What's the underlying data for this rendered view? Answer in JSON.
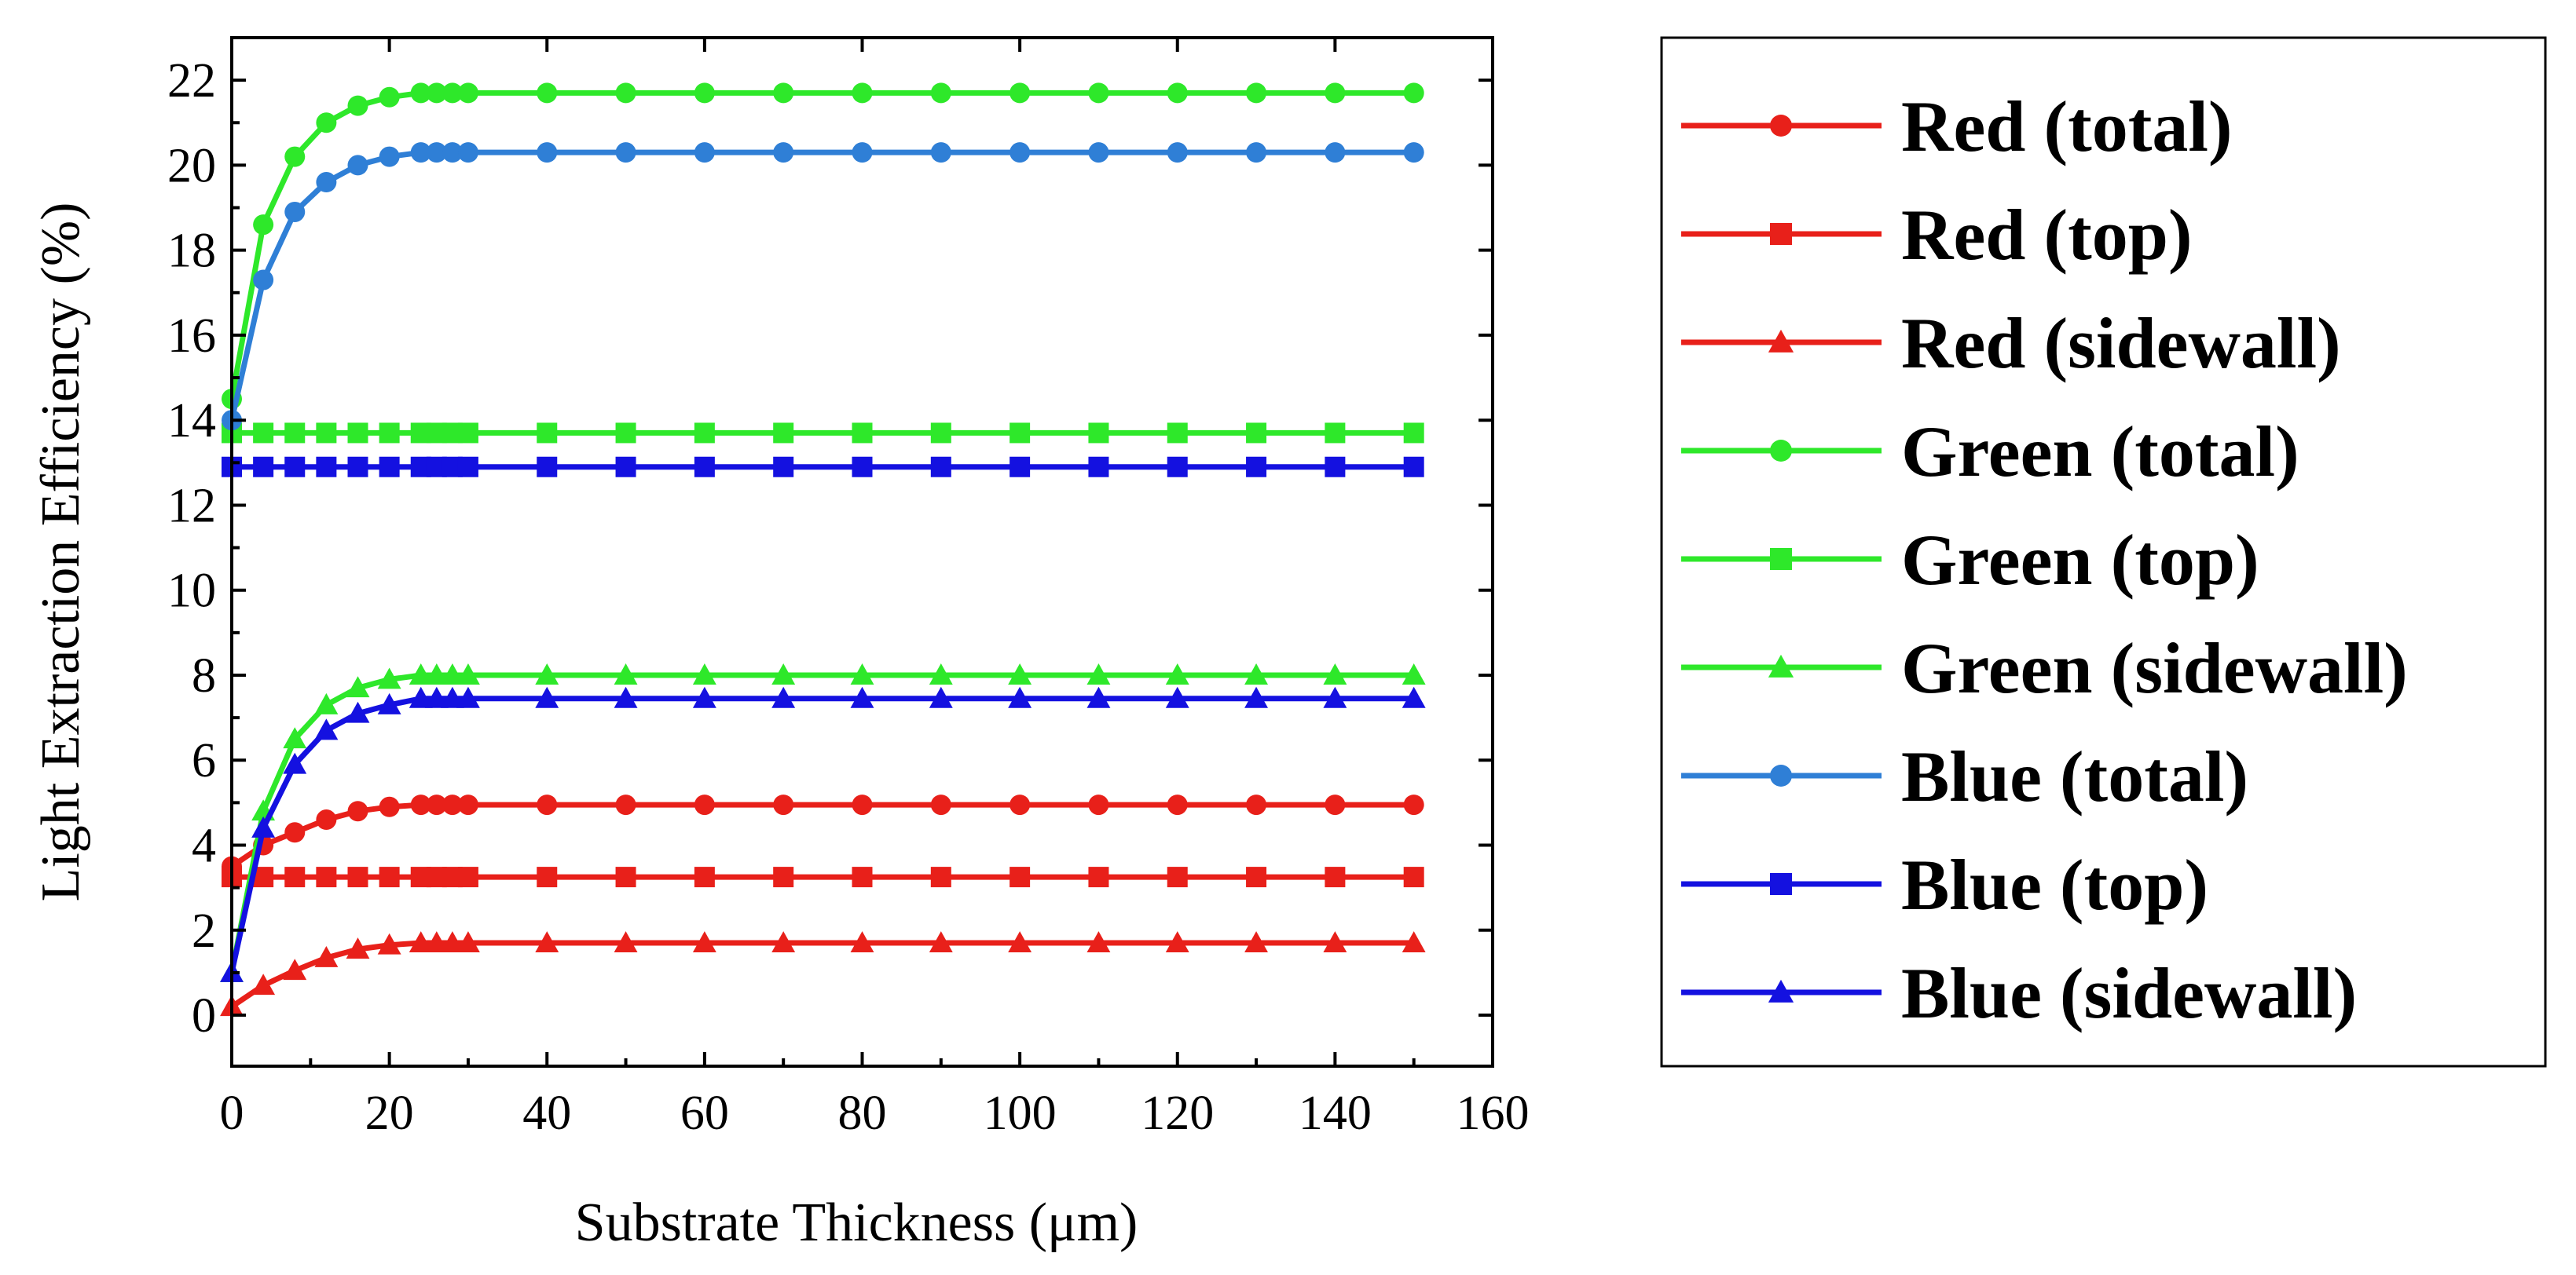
{
  "chart_data": {
    "type": "line",
    "title": "",
    "xlabel": "Substrate Thickness (μm)",
    "ylabel": "Light Extraction Efficiency (%)",
    "xlim": [
      0,
      160
    ],
    "ylim": [
      -1.2,
      23
    ],
    "x_ticks": [
      0,
      20,
      40,
      60,
      80,
      100,
      120,
      140,
      160
    ],
    "y_ticks": [
      0,
      2,
      4,
      6,
      8,
      10,
      12,
      14,
      16,
      18,
      20,
      22
    ],
    "x": [
      0,
      4,
      8,
      12,
      16,
      20,
      24,
      26,
      28,
      30,
      40,
      50,
      60,
      70,
      80,
      90,
      100,
      110,
      120,
      130,
      140,
      150
    ],
    "legend_position": "right, outside plot",
    "series": [
      {
        "name": "Red (total)",
        "color": "#e8201a",
        "marker": "circle",
        "values": [
          3.5,
          4.0,
          4.3,
          4.6,
          4.8,
          4.9,
          4.95,
          4.95,
          4.95,
          4.95,
          4.95,
          4.95,
          4.95,
          4.95,
          4.95,
          4.95,
          4.95,
          4.95,
          4.95,
          4.95,
          4.95,
          4.95
        ]
      },
      {
        "name": "Red (top)",
        "color": "#e8201a",
        "marker": "square",
        "values": [
          3.25,
          3.25,
          3.25,
          3.25,
          3.25,
          3.25,
          3.25,
          3.25,
          3.25,
          3.25,
          3.25,
          3.25,
          3.25,
          3.25,
          3.25,
          3.25,
          3.25,
          3.25,
          3.25,
          3.25,
          3.25,
          3.25
        ]
      },
      {
        "name": "Red (sidewall)",
        "color": "#e8201a",
        "marker": "triangle",
        "values": [
          0.2,
          0.7,
          1.05,
          1.35,
          1.55,
          1.65,
          1.7,
          1.7,
          1.7,
          1.7,
          1.7,
          1.7,
          1.7,
          1.7,
          1.7,
          1.7,
          1.7,
          1.7,
          1.7,
          1.7,
          1.7,
          1.7
        ]
      },
      {
        "name": "Green (total)",
        "color": "#2ee82a",
        "marker": "circle",
        "values": [
          14.5,
          18.6,
          20.2,
          21.0,
          21.4,
          21.6,
          21.7,
          21.7,
          21.7,
          21.7,
          21.7,
          21.7,
          21.7,
          21.7,
          21.7,
          21.7,
          21.7,
          21.7,
          21.7,
          21.7,
          21.7,
          21.7
        ]
      },
      {
        "name": "Green (top)",
        "color": "#2ee82a",
        "marker": "square",
        "values": [
          13.7,
          13.7,
          13.7,
          13.7,
          13.7,
          13.7,
          13.7,
          13.7,
          13.7,
          13.7,
          13.7,
          13.7,
          13.7,
          13.7,
          13.7,
          13.7,
          13.7,
          13.7,
          13.7,
          13.7,
          13.7,
          13.7
        ]
      },
      {
        "name": "Green (sidewall)",
        "color": "#2ee82a",
        "marker": "triangle",
        "values": [
          1.0,
          4.8,
          6.5,
          7.3,
          7.7,
          7.9,
          8.0,
          8.0,
          8.0,
          8.0,
          8.0,
          8.0,
          8.0,
          8.0,
          8.0,
          8.0,
          8.0,
          8.0,
          8.0,
          8.0,
          8.0,
          8.0
        ]
      },
      {
        "name": "Blue (total)",
        "color": "#2f7fd6",
        "marker": "circle",
        "values": [
          14.0,
          17.3,
          18.9,
          19.6,
          20.0,
          20.2,
          20.3,
          20.3,
          20.3,
          20.3,
          20.3,
          20.3,
          20.3,
          20.3,
          20.3,
          20.3,
          20.3,
          20.3,
          20.3,
          20.3,
          20.3,
          20.3
        ]
      },
      {
        "name": "Blue (top)",
        "color": "#1411e0",
        "marker": "square",
        "values": [
          12.9,
          12.9,
          12.9,
          12.9,
          12.9,
          12.9,
          12.9,
          12.9,
          12.9,
          12.9,
          12.9,
          12.9,
          12.9,
          12.9,
          12.9,
          12.9,
          12.9,
          12.9,
          12.9,
          12.9,
          12.9,
          12.9
        ]
      },
      {
        "name": "Blue (sidewall)",
        "color": "#1411e0",
        "marker": "triangle",
        "values": [
          1.0,
          4.4,
          5.9,
          6.7,
          7.1,
          7.3,
          7.45,
          7.45,
          7.45,
          7.45,
          7.45,
          7.45,
          7.45,
          7.45,
          7.45,
          7.45,
          7.45,
          7.45,
          7.45,
          7.45,
          7.45,
          7.45
        ]
      }
    ]
  }
}
